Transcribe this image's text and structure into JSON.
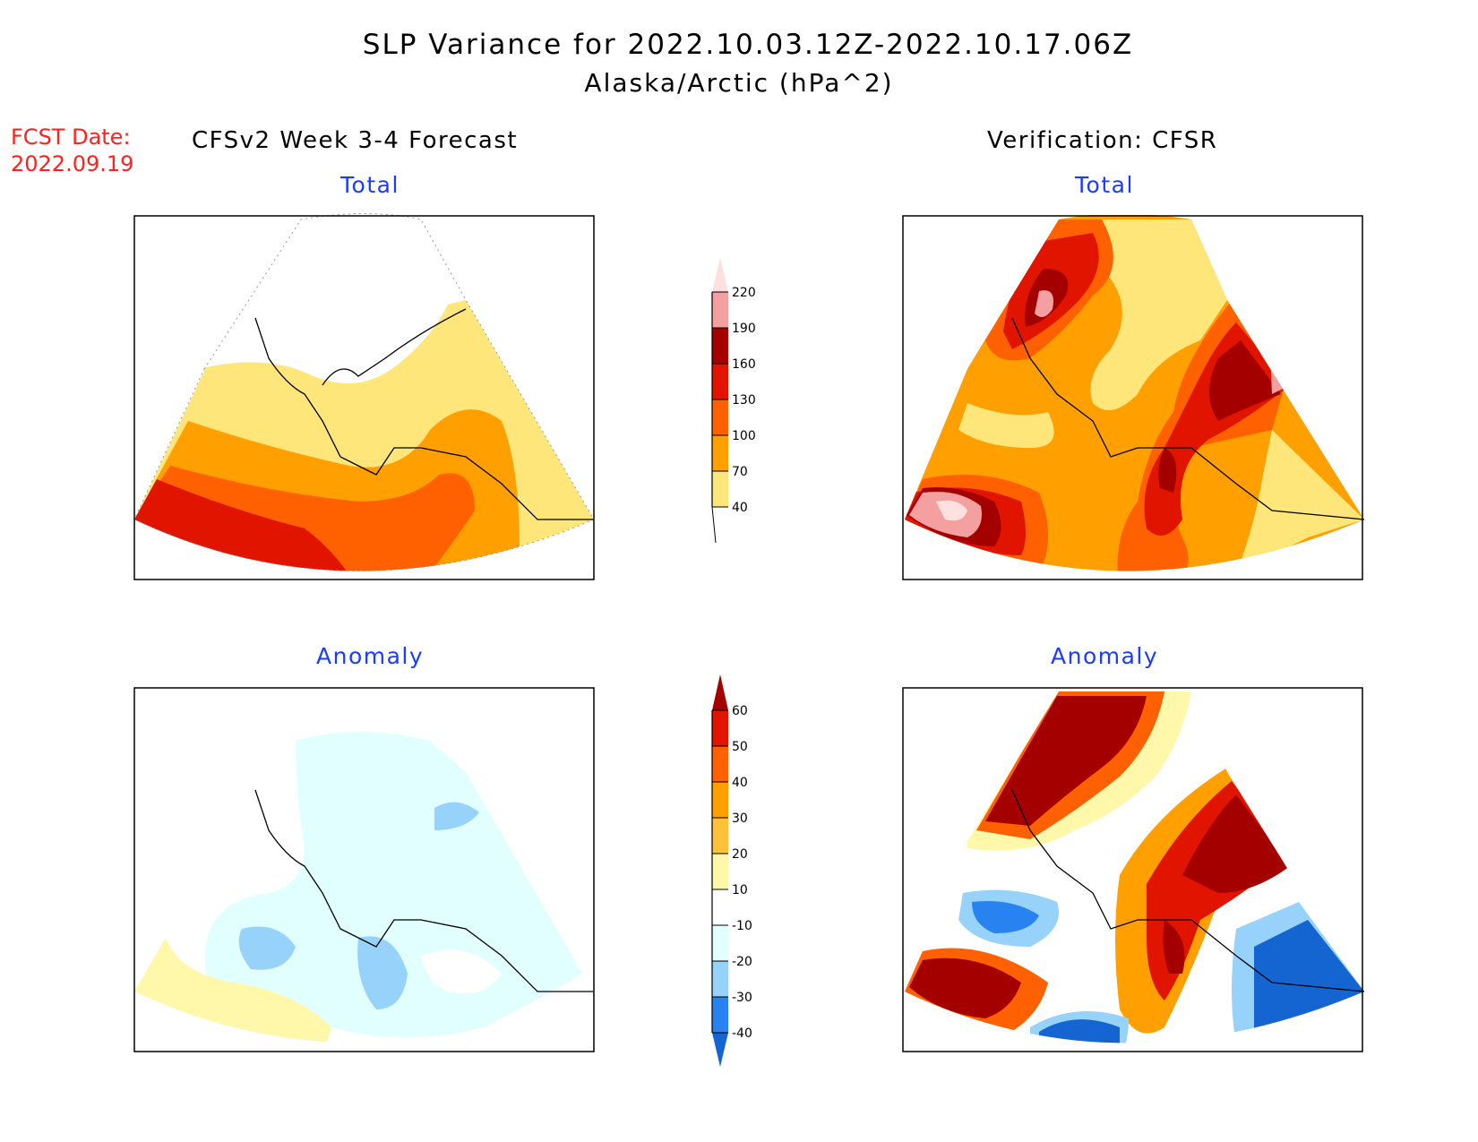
{
  "title": {
    "line1": "SLP Variance for 2022.10.03.12Z-2022.10.17.06Z",
    "line2": "Alaska/Arctic (hPa^2)"
  },
  "fcst_date": {
    "label": "FCST Date:",
    "value": "2022.09.19"
  },
  "left_column": {
    "heading": "CFSv2 Week 3-4 Forecast",
    "top_title": "Total",
    "bottom_title": "Anomaly"
  },
  "right_column": {
    "heading": "Verification: CFSR",
    "top_title": "Total",
    "bottom_title": "Anomaly"
  },
  "colorbars": {
    "total": {
      "levels": [
        "40",
        "70",
        "100",
        "130",
        "160",
        "190",
        "220"
      ],
      "colors": [
        "#ffe67a",
        "#ffa000",
        "#ff6000",
        "#e11400",
        "#a50000",
        "#f4a0a0",
        "#ffe0e0"
      ]
    },
    "anomaly": {
      "levels": [
        "-40",
        "-30",
        "-20",
        "-10",
        "10",
        "20",
        "30",
        "40",
        "50",
        "60"
      ],
      "colors": [
        "#1464d2",
        "#2882f0",
        "#96d2fa",
        "#e1ffff",
        "#ffffff",
        "#fff8aa",
        "#ffc03c",
        "#ffa000",
        "#ff6000",
        "#e11400",
        "#a50000"
      ]
    }
  }
}
